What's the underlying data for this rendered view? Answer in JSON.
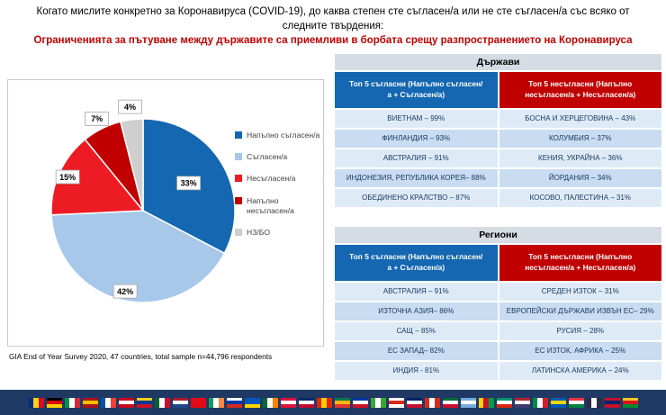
{
  "title": "Когато мислите конкретно за Коронавируса (COVID-19), до каква степен сте съгласен/а или не сте съгласен/а със всяко от следните твърдения:",
  "subtitle": "Ограниченията за пътуване между държавите са приемливи в борбата срещу разпространението на Коронавируса",
  "footnote": "GIA End of Year Survey 2020, 47 countries,  total sample n=44,796 respondents",
  "colors": {
    "subtitle_red": "#C00000",
    "header_blue": "#1467B0",
    "header_red": "#C00000",
    "section_header_bg": "#D6DCE4",
    "row_light": "#DEEBF7",
    "row_dark": "#C9DCF2",
    "flags_bar_bg": "#203864",
    "cell_text": "#17375E"
  },
  "chart_data": [
    {
      "type": "pie",
      "labels": [
        "Напълно съгласен/а",
        "Съгласен/а",
        "Несъгласен/а",
        "Напълно несъгласен/а",
        "НЗ/БО"
      ],
      "values": [
        33,
        42,
        15,
        7,
        4
      ],
      "data_labels": [
        "33%",
        "42%",
        "15%",
        "7%",
        "4%"
      ],
      "colors": [
        "#1467B0",
        "#A8C8E9",
        "#ED1C24",
        "#C00000",
        "#CFCFCF"
      ],
      "legend_position": "right",
      "start_angle": "12-oclock-clockwise"
    },
    {
      "type": "table",
      "title": "Държави",
      "columns": [
        "Топ 5 съгласни (Напълно съгласен/а + Съгласен/а)",
        "Топ 5 несъгласни (Напълно несъгласен/а + Несъгласен/а)"
      ],
      "rows": [
        [
          "ВИЕТНАМ – 99%",
          "БОСНА И ХЕРЦЕГОВИНА – 43%"
        ],
        [
          "ФИНЛАНДИЯ – 93%",
          "КОЛУМБИЯ – 37%"
        ],
        [
          "АВСТРАЛИЯ – 91%",
          "КЕНИЯ, УКРАЙНА – 36%"
        ],
        [
          "ИНДОНЕЗИЯ, РЕПУБЛИКА КОРЕЯ– 88%",
          "ЙОРДАНИЯ – 34%"
        ],
        [
          "ОБЕДИНЕНО КРАЛСТВО – 87%",
          "КОСОВО, ПАЛЕСТИНА – 31%"
        ]
      ]
    },
    {
      "type": "table",
      "title": "Региони",
      "columns": [
        "Топ 5 съгласни (Напълно съгласен/а + Съгласен/а)",
        "Топ 5 несъгласни (Напълно несъгласен/а + Несъгласен/а)"
      ],
      "rows": [
        [
          "АВСТРАЛИЯ  – 91%",
          "СРЕДЕН ИЗТОК – 31%"
        ],
        [
          "ИЗТОЧНА АЗИЯ– 86%",
          "ЕВРОПЕЙСКИ ДЪРЖАВИ ИЗВЪН ЕС– 29%"
        ],
        [
          "САЩ – 85%",
          "РУСИЯ – 28%"
        ],
        [
          "ЕС ЗАПАД– 82%",
          "ЕС ИЗТОК, АФРИКА – 25%"
        ],
        [
          "ИНДИЯ - 81%",
          "ЛАТИНСКА АМЕРИКА – 24%"
        ]
      ]
    }
  ],
  "flags": [
    [
      "v",
      [
        "#002B7F",
        "#FCD116",
        "#CE1126"
      ]
    ],
    [
      "h",
      [
        "#000000",
        "#DD0000",
        "#FFCE00"
      ]
    ],
    [
      "v",
      [
        "#009246",
        "#FFFFFF",
        "#CE2B37"
      ]
    ],
    [
      "h",
      [
        "#AA151B",
        "#F1BF00",
        "#AA151B"
      ]
    ],
    [
      "v",
      [
        "#0055A4",
        "#FFFFFF",
        "#EF4135"
      ]
    ],
    [
      "h",
      [
        "#C60B1E",
        "#FFFFFF",
        "#C60B1E"
      ]
    ],
    [
      "h",
      [
        "#FCD116",
        "#003893",
        "#CE1126"
      ]
    ],
    [
      "v",
      [
        "#006233",
        "#FFFFFF",
        "#C8102E"
      ]
    ],
    [
      "h",
      [
        "#AE1C28",
        "#FFFFFF",
        "#21468B"
      ]
    ],
    [
      "h",
      [
        "#E30A17",
        "#E30A17",
        "#E30A17"
      ]
    ],
    [
      "v",
      [
        "#169B62",
        "#FFFFFF",
        "#FF883E"
      ]
    ],
    [
      "h",
      [
        "#FFFFFF",
        "#0039A6",
        "#D52B1E"
      ]
    ],
    [
      "h",
      [
        "#0057B7",
        "#0057B7",
        "#FFD700"
      ]
    ],
    [
      "v",
      [
        "#046A38",
        "#FFFFFF",
        "#FF8200"
      ]
    ],
    [
      "h",
      [
        "#DC143C",
        "#FFFFFF",
        "#DC143C"
      ]
    ],
    [
      "h",
      [
        "#002868",
        "#FFFFFF",
        "#BF0A30"
      ]
    ],
    [
      "v",
      [
        "#DE2910",
        "#FFCC00",
        "#DE2910"
      ]
    ],
    [
      "h",
      [
        "#007A4D",
        "#FFB612",
        "#DE3831"
      ]
    ],
    [
      "h",
      [
        "#0038A8",
        "#FFFFFF",
        "#CE1126"
      ]
    ],
    [
      "v",
      [
        "#3DA639",
        "#FFFFFF",
        "#3DA639"
      ]
    ],
    [
      "h",
      [
        "#FFFFFF",
        "#DA291C",
        "#FFFFFF"
      ]
    ],
    [
      "h",
      [
        "#012169",
        "#FFFFFF",
        "#C8102E"
      ]
    ],
    [
      "v",
      [
        "#D52B1E",
        "#FFFFFF",
        "#D52B1E"
      ]
    ],
    [
      "h",
      [
        "#046A38",
        "#FFFFFF",
        "#C8102E"
      ]
    ],
    [
      "h",
      [
        "#75AADB",
        "#FFFFFF",
        "#75AADB"
      ]
    ],
    [
      "v",
      [
        "#FCD116",
        "#CE1126",
        "#009E49"
      ]
    ],
    [
      "h",
      [
        "#00966E",
        "#FFFFFF",
        "#D62612"
      ]
    ],
    [
      "h",
      [
        "#B22234",
        "#FFFFFF",
        "#3C3B6E"
      ]
    ],
    [
      "v",
      [
        "#008C45",
        "#F4F9FF",
        "#CD212A"
      ]
    ],
    [
      "h",
      [
        "#005BAC",
        "#FFD500",
        "#005BAC"
      ]
    ],
    [
      "h",
      [
        "#EF3340",
        "#FFFFFF",
        "#00843D"
      ]
    ],
    [
      "v",
      [
        "#2D2A4A",
        "#FFFFFF",
        "#2D2A4A"
      ]
    ],
    [
      "h",
      [
        "#C8102E",
        "#012169",
        "#C8102E"
      ]
    ],
    [
      "h",
      [
        "#FFC726",
        "#DA121A",
        "#078930"
      ]
    ]
  ]
}
